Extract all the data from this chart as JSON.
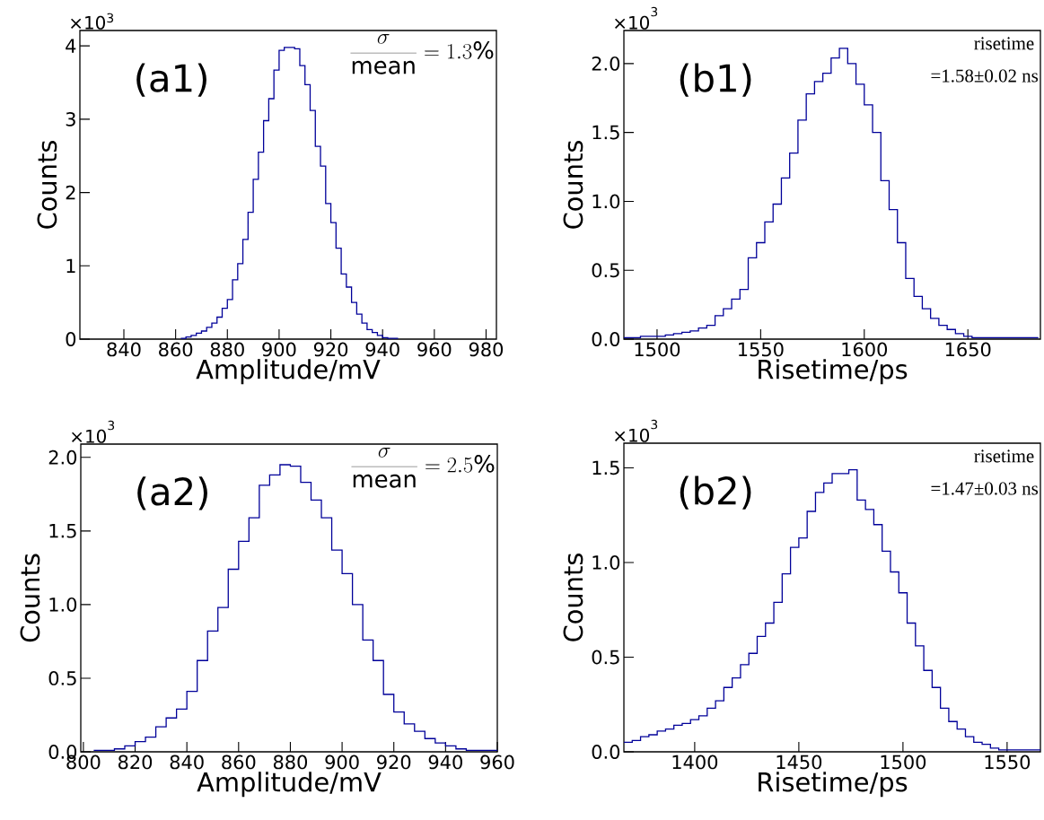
{
  "chart_data": [
    {
      "type": "histogram",
      "xlabel": "Amplitude/mV",
      "ylabel": "Counts",
      "color": "#000099",
      "annotations": [
        "×10$^{3}$",
        "(a1)",
        "\\frac{\\sigma}{\\mathrm{mean}} = 1.3\\%"
      ],
      "bins": [
        862,
        864,
        866,
        868,
        870,
        872,
        874,
        876,
        878,
        880,
        882,
        884,
        886,
        888,
        890,
        892,
        894,
        896,
        898,
        900,
        902,
        904,
        906,
        908,
        910,
        912,
        914,
        916,
        918,
        920,
        922,
        924,
        926,
        928,
        930,
        932,
        934,
        936,
        938,
        940,
        942,
        944,
        946
      ],
      "values": [
        0.01,
        0.03,
        0.05,
        0.08,
        0.11,
        0.16,
        0.22,
        0.3,
        0.42,
        0.54,
        0.81,
        1.03,
        1.36,
        1.73,
        2.18,
        2.55,
        2.98,
        3.28,
        3.67,
        3.94,
        3.98,
        3.98,
        3.96,
        3.73,
        3.47,
        3.12,
        2.63,
        2.36,
        1.85,
        1.59,
        1.24,
        0.89,
        0.71,
        0.5,
        0.34,
        0.22,
        0.13,
        0.09,
        0.05,
        0.02,
        0.01,
        0.01
      ],
      "xlim": [
        823,
        984
      ],
      "ylim": [
        0,
        4.21
      ],
      "xticks": [
        840,
        860,
        880,
        900,
        920,
        940,
        960,
        980
      ],
      "yticks": [
        0,
        1,
        2,
        3,
        4
      ]
    },
    {
      "type": "histogram",
      "xlabel": "Risetime/ps",
      "ylabel": "Counts",
      "color": "#000099",
      "annotations": [
        "×10$^{3}$",
        "(b1)",
        "risetime",
        "=1.58±0.02 ns"
      ],
      "bins": [
        1484,
        1488,
        1492,
        1496,
        1500,
        1504,
        1508,
        1512,
        1516,
        1520,
        1524,
        1528,
        1532,
        1536,
        1540,
        1544,
        1548,
        1552,
        1556,
        1560,
        1564,
        1568,
        1572,
        1576,
        1580,
        1584,
        1588,
        1592,
        1596,
        1600,
        1604,
        1608,
        1612,
        1616,
        1620,
        1624,
        1628,
        1632,
        1636,
        1640,
        1644,
        1648,
        1652,
        1656,
        1660,
        1664,
        1668,
        1672,
        1676,
        1680,
        1684
      ],
      "values": [
        0.01,
        0.01,
        0.02,
        0.02,
        0.02,
        0.03,
        0.04,
        0.05,
        0.06,
        0.08,
        0.1,
        0.17,
        0.22,
        0.29,
        0.36,
        0.59,
        0.7,
        0.85,
        0.98,
        1.17,
        1.35,
        1.59,
        1.78,
        1.87,
        1.93,
        2.04,
        2.11,
        2.0,
        1.85,
        1.7,
        1.5,
        1.15,
        0.94,
        0.7,
        0.44,
        0.31,
        0.22,
        0.15,
        0.1,
        0.07,
        0.04,
        0.02,
        0.01,
        0.01,
        0.01,
        0.01,
        0.01,
        0.01,
        0.01,
        0.01
      ],
      "xlim": [
        1484,
        1685
      ],
      "ylim": [
        0,
        2.24
      ],
      "xticks": [
        1500,
        1550,
        1600,
        1650
      ],
      "yticks": [
        {
          "value": 0,
          "label": "0.0"
        },
        {
          "value": 0.5,
          "label": "0.5"
        },
        {
          "value": 1,
          "label": "1.0"
        },
        {
          "value": 1.5,
          "label": "1.5"
        },
        {
          "value": 2,
          "label": "2.0"
        }
      ]
    },
    {
      "type": "histogram",
      "xlabel": "Amplitude/mV",
      "ylabel": "Counts",
      "color": "#000099",
      "annotations": [
        "×10$^{3}$",
        "(a2)",
        "\\frac{\\sigma}{\\mathrm{mean}} = 2.5\\%"
      ],
      "bins": [
        804,
        808,
        812,
        816,
        820,
        824,
        828,
        832,
        836,
        840,
        844,
        848,
        852,
        856,
        860,
        864,
        868,
        872,
        876,
        880,
        884,
        888,
        892,
        896,
        900,
        904,
        908,
        912,
        916,
        920,
        924,
        928,
        932,
        936,
        940,
        944,
        948,
        952,
        956,
        960
      ],
      "values": [
        0.01,
        0.01,
        0.02,
        0.04,
        0.07,
        0.1,
        0.17,
        0.23,
        0.29,
        0.41,
        0.62,
        0.82,
        0.98,
        1.24,
        1.43,
        1.59,
        1.81,
        1.88,
        1.95,
        1.94,
        1.83,
        1.71,
        1.59,
        1.37,
        1.21,
        1.0,
        0.76,
        0.62,
        0.39,
        0.27,
        0.19,
        0.14,
        0.09,
        0.06,
        0.04,
        0.02,
        0.01,
        0.01,
        0.01
      ],
      "xlim": [
        799,
        960
      ],
      "ylim": [
        0,
        2.09
      ],
      "xticks": [
        800,
        820,
        840,
        860,
        880,
        900,
        920,
        940,
        960
      ],
      "yticks": [
        {
          "value": 0,
          "label": "0.0"
        },
        {
          "value": 0.5,
          "label": "0.5"
        },
        {
          "value": 1,
          "label": "1.0"
        },
        {
          "value": 1.5,
          "label": "1.5"
        },
        {
          "value": 2,
          "label": "2.0"
        }
      ]
    },
    {
      "type": "histogram",
      "xlabel": "Risetime/ps",
      "ylabel": "Counts",
      "color": "#000099",
      "annotations": [
        "×10$^{3}$",
        "(b2)",
        "risetime",
        "=1.47±0.03 ns"
      ],
      "bins": [
        1366,
        1370,
        1374,
        1378,
        1382,
        1386,
        1390,
        1394,
        1398,
        1402,
        1406,
        1410,
        1414,
        1418,
        1422,
        1426,
        1430,
        1434,
        1438,
        1442,
        1446,
        1450,
        1454,
        1458,
        1462,
        1466,
        1470,
        1474,
        1478,
        1482,
        1486,
        1490,
        1494,
        1498,
        1502,
        1506,
        1510,
        1514,
        1518,
        1522,
        1526,
        1530,
        1534,
        1538,
        1542,
        1546,
        1550,
        1554,
        1558,
        1562,
        1566
      ],
      "values": [
        0.05,
        0.06,
        0.08,
        0.09,
        0.11,
        0.12,
        0.14,
        0.15,
        0.17,
        0.19,
        0.23,
        0.27,
        0.34,
        0.39,
        0.46,
        0.52,
        0.61,
        0.68,
        0.79,
        0.94,
        1.08,
        1.13,
        1.27,
        1.37,
        1.42,
        1.47,
        1.47,
        1.49,
        1.33,
        1.28,
        1.2,
        1.06,
        0.95,
        0.84,
        0.68,
        0.56,
        0.43,
        0.34,
        0.23,
        0.16,
        0.12,
        0.08,
        0.05,
        0.04,
        0.02,
        0.01,
        0.01,
        0.01,
        0.01,
        0.01
      ],
      "xlim": [
        1366,
        1566
      ],
      "ylim": [
        0,
        1.63
      ],
      "xticks": [
        1400,
        1450,
        1500,
        1550
      ],
      "yticks": [
        {
          "value": 0,
          "label": "0.0"
        },
        {
          "value": 0.5,
          "label": "0.5"
        },
        {
          "value": 1,
          "label": "1.0"
        },
        {
          "value": 1.5,
          "label": "1.5"
        }
      ]
    }
  ]
}
